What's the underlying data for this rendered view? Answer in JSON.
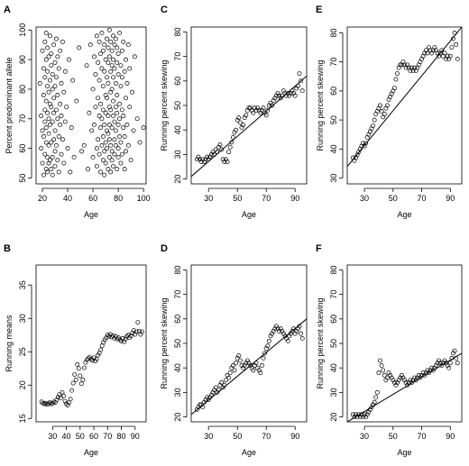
{
  "chart_data": [
    {
      "panel": "A",
      "type": "scatter",
      "xlabel": "Age",
      "ylabel": "Percent predominant allele",
      "xlim": [
        15,
        102
      ],
      "ylim": [
        48,
        101
      ],
      "xticks": [
        20,
        40,
        60,
        80,
        100
      ],
      "yticks": [
        50,
        60,
        70,
        80,
        90,
        100
      ],
      "fit_line": null,
      "x": [
        18,
        19,
        19,
        20,
        20,
        20,
        21,
        21,
        21,
        21,
        22,
        22,
        22,
        22,
        22,
        23,
        23,
        23,
        23,
        23,
        23,
        24,
        24,
        24,
        24,
        24,
        24,
        25,
        25,
        25,
        25,
        25,
        25,
        26,
        26,
        26,
        26,
        26,
        27,
        27,
        27,
        27,
        27,
        28,
        28,
        28,
        28,
        28,
        29,
        29,
        29,
        29,
        30,
        30,
        30,
        30,
        30,
        31,
        31,
        31,
        31,
        32,
        32,
        32,
        32,
        33,
        33,
        33,
        34,
        34,
        34,
        35,
        35,
        35,
        36,
        36,
        37,
        37,
        38,
        38,
        39,
        40,
        41,
        42,
        43,
        44,
        45,
        47,
        49,
        51,
        53,
        55,
        56,
        57,
        58,
        59,
        60,
        60,
        61,
        61,
        62,
        62,
        63,
        63,
        63,
        64,
        64,
        64,
        65,
        65,
        65,
        65,
        66,
        66,
        66,
        66,
        67,
        67,
        67,
        67,
        68,
        68,
        68,
        68,
        68,
        69,
        69,
        69,
        69,
        69,
        70,
        70,
        70,
        70,
        70,
        71,
        71,
        71,
        71,
        71,
        72,
        72,
        72,
        72,
        72,
        72,
        73,
        73,
        73,
        73,
        73,
        73,
        74,
        74,
        74,
        74,
        74,
        74,
        75,
        75,
        75,
        75,
        75,
        75,
        76,
        76,
        76,
        76,
        76,
        76,
        77,
        77,
        77,
        77,
        77,
        78,
        78,
        78,
        78,
        78,
        79,
        79,
        79,
        79,
        79,
        80,
        80,
        80,
        80,
        80,
        81,
        81,
        81,
        81,
        82,
        82,
        82,
        82,
        83,
        83,
        83,
        83,
        84,
        84,
        84,
        85,
        85,
        85,
        86,
        86,
        86,
        87,
        87,
        88,
        88,
        89,
        89,
        90,
        91,
        92,
        93,
        95,
        97,
        100
      ],
      "y": [
        82,
        60,
        71,
        55,
        93,
        66,
        78,
        51,
        87,
        64,
        73,
        58,
        96,
        69,
        84,
        53,
        76,
        90,
        62,
        99,
        67,
        81,
        57,
        72,
        94,
        52,
        86,
        65,
        79,
        55,
        91,
        70,
        61,
        75,
        98,
        56,
        83,
        68,
        88,
        53,
        74,
        62,
        92,
        80,
        57,
        69,
        85,
        51,
        77,
        95,
        63,
        72,
        59,
        89,
        66,
        81,
        54,
        73,
        97,
        61,
        84,
        70,
        56,
        91,
        78,
        64,
        87,
        52,
        75,
        93,
        68,
        58,
        82,
        71,
        96,
        63,
        79,
        55,
        86,
        69,
        74,
        60,
        90,
        52,
        67,
        83,
        57,
        76,
        94,
        59,
        61,
        88,
        53,
        72,
        95,
        66,
        80,
        57,
        91,
        68,
        74,
        85,
        60,
        98,
        54,
        77,
        89,
        63,
        71,
        96,
        58,
        83,
        67,
        52,
        92,
        75,
        61,
        87,
        70,
        99,
        56,
        81,
        64,
        93,
        73,
        59,
        86,
        68,
        51,
        95,
        78,
        62,
        90,
        72,
        55,
        84,
        66,
        97,
        60,
        77,
        89,
        53,
        71,
        94,
        65,
        82,
        57,
        100,
        74,
        63,
        91,
        68,
        86,
        52,
        79,
        96,
        61,
        73,
        88,
        56,
        93,
        67,
        80,
        59,
        98,
        71,
        84,
        54,
        76,
        90,
        63,
        95,
        69,
        58,
        87,
        74,
        82,
        61,
        97,
        66,
        53,
        89,
        72,
        78,
        94,
        60,
        85,
        68,
        57,
        92,
        75,
        64,
        99,
        70,
        81,
        55,
        88,
        62,
        93,
        73,
        58,
        84,
        67,
        96,
        71,
        53,
        86,
        64,
        90,
        77,
        59,
        82,
        68,
        95,
        61,
        74,
        87,
        56,
        79,
        66,
        91,
        70,
        62,
        67
      ]
    },
    {
      "panel": "B",
      "type": "scatter",
      "xlabel": "Age",
      "ylabel": "Running means",
      "xlim": [
        18,
        98
      ],
      "ylim": [
        14.5,
        38
      ],
      "xticks": [
        30,
        40,
        50,
        60,
        70,
        80,
        90
      ],
      "yticks": [
        15,
        20,
        25,
        30,
        35
      ],
      "fit_line": null,
      "x": [
        22,
        23,
        24,
        25,
        26,
        27,
        28,
        29,
        30,
        31,
        32,
        33,
        34,
        35,
        36,
        37,
        38,
        39,
        40,
        41,
        42,
        43,
        44,
        45,
        46,
        47,
        48,
        49,
        50,
        51,
        52,
        53,
        54,
        55,
        56,
        57,
        58,
        59,
        60,
        61,
        62,
        63,
        64,
        65,
        66,
        67,
        68,
        69,
        70,
        71,
        72,
        73,
        74,
        75,
        76,
        77,
        78,
        79,
        80,
        81,
        82,
        83,
        84,
        85,
        86,
        87,
        88,
        89,
        90,
        91,
        92,
        93,
        94,
        95
      ],
      "y": [
        17.5,
        17.3,
        17.2,
        17.3,
        17.1,
        17.2,
        17.4,
        17.2,
        17.3,
        17.5,
        17.4,
        17.8,
        18.2,
        18.6,
        18.1,
        18.9,
        18.4,
        17.6,
        17.2,
        17.0,
        17.4,
        17.9,
        19.2,
        20.3,
        21.6,
        20.8,
        23.1,
        22.5,
        21.4,
        20.2,
        20.8,
        22.6,
        23.4,
        23.8,
        24.0,
        24.2,
        23.9,
        23.7,
        24.1,
        23.6,
        23.9,
        24.5,
        24.8,
        25.3,
        25.9,
        26.4,
        26.8,
        27.1,
        27.5,
        27.3,
        27.6,
        27.2,
        27.4,
        27.0,
        27.3,
        26.9,
        27.1,
        26.8,
        26.6,
        27.0,
        26.5,
        26.9,
        27.3,
        27.5,
        27.1,
        27.4,
        27.8,
        28.2,
        27.6,
        28.0,
        29.4,
        28.1,
        27.6,
        28.0
      ]
    },
    {
      "panel": "C",
      "type": "scatter",
      "xlabel": "Age",
      "ylabel": "Running percent skewing",
      "xlim": [
        18,
        98
      ],
      "ylim": [
        18,
        82
      ],
      "xticks": [
        30,
        50,
        70,
        90
      ],
      "yticks": [
        20,
        30,
        40,
        50,
        60,
        70,
        80
      ],
      "fit_line": {
        "x": [
          18,
          98
        ],
        "y": [
          21,
          62
        ]
      },
      "x": [
        22,
        23,
        24,
        25,
        26,
        27,
        28,
        29,
        30,
        31,
        32,
        33,
        34,
        35,
        36,
        37,
        38,
        39,
        40,
        41,
        42,
        43,
        44,
        45,
        46,
        47,
        48,
        49,
        50,
        51,
        52,
        53,
        54,
        55,
        56,
        57,
        58,
        59,
        60,
        61,
        62,
        63,
        64,
        65,
        66,
        67,
        68,
        69,
        70,
        71,
        72,
        73,
        74,
        75,
        76,
        77,
        78,
        79,
        80,
        81,
        82,
        83,
        84,
        85,
        86,
        87,
        88,
        89,
        90,
        91,
        92,
        93,
        94,
        95
      ],
      "y": [
        28,
        29,
        28,
        27,
        28,
        27,
        28,
        29,
        28,
        29,
        30,
        31,
        30,
        32,
        31,
        33,
        34,
        32,
        28,
        27,
        28,
        27,
        31,
        33,
        35,
        37,
        39,
        40,
        44,
        45,
        43,
        41,
        42,
        45,
        46,
        48,
        49,
        49,
        48,
        47,
        49,
        48,
        49,
        48,
        47,
        48,
        49,
        47,
        46,
        48,
        50,
        51,
        50,
        52,
        53,
        54,
        55,
        54,
        53,
        54,
        56,
        55,
        54,
        55,
        54,
        55,
        56,
        55,
        54,
        57,
        58,
        63,
        60,
        56
      ]
    },
    {
      "panel": "D",
      "type": "scatter",
      "xlabel": "Age",
      "ylabel": "Running percent skewing",
      "xlim": [
        18,
        98
      ],
      "ylim": [
        18,
        82
      ],
      "xticks": [
        30,
        50,
        70,
        90
      ],
      "yticks": [
        20,
        30,
        40,
        50,
        60,
        70,
        80
      ],
      "fit_line": {
        "x": [
          18,
          98
        ],
        "y": [
          21,
          60
        ]
      },
      "x": [
        22,
        23,
        24,
        25,
        26,
        27,
        28,
        29,
        30,
        31,
        32,
        33,
        34,
        35,
        36,
        37,
        38,
        39,
        40,
        41,
        42,
        43,
        44,
        45,
        46,
        47,
        48,
        49,
        50,
        51,
        52,
        53,
        54,
        55,
        56,
        57,
        58,
        59,
        60,
        61,
        62,
        63,
        64,
        65,
        66,
        67,
        68,
        69,
        70,
        71,
        72,
        73,
        74,
        75,
        76,
        77,
        78,
        79,
        80,
        81,
        82,
        83,
        84,
        85,
        86,
        87,
        88,
        89,
        90,
        91,
        92,
        93,
        94,
        95
      ],
      "y": [
        23,
        24,
        25,
        25,
        24,
        26,
        27,
        28,
        27,
        28,
        29,
        30,
        31,
        32,
        30,
        31,
        33,
        34,
        32,
        33,
        35,
        37,
        36,
        38,
        40,
        41,
        39,
        42,
        44,
        45,
        43,
        41,
        40,
        41,
        42,
        43,
        42,
        41,
        40,
        39,
        41,
        42,
        40,
        39,
        38,
        41,
        44,
        46,
        48,
        49,
        51,
        53,
        54,
        55,
        56,
        57,
        56,
        55,
        56,
        55,
        54,
        53,
        52,
        51,
        53,
        54,
        55,
        56,
        54,
        55,
        56,
        57,
        54,
        52
      ]
    },
    {
      "panel": "E",
      "type": "scatter",
      "xlabel": "Age",
      "ylabel": "Running percent skewing",
      "xlim": [
        18,
        98
      ],
      "ylim": [
        28,
        82
      ],
      "xticks": [
        30,
        50,
        70,
        90
      ],
      "yticks": [
        30,
        40,
        50,
        60,
        70,
        80
      ],
      "fit_line": {
        "x": [
          18,
          98
        ],
        "y": [
          34,
          82
        ]
      },
      "x": [
        22,
        23,
        24,
        25,
        26,
        27,
        28,
        29,
        30,
        31,
        32,
        33,
        34,
        35,
        36,
        37,
        38,
        39,
        40,
        41,
        42,
        43,
        44,
        45,
        46,
        47,
        48,
        49,
        50,
        51,
        52,
        53,
        54,
        55,
        56,
        57,
        58,
        59,
        60,
        61,
        62,
        63,
        64,
        65,
        66,
        67,
        68,
        69,
        70,
        71,
        72,
        73,
        74,
        75,
        76,
        77,
        78,
        79,
        80,
        81,
        82,
        83,
        84,
        85,
        86,
        87,
        88,
        89,
        90,
        91,
        92,
        93,
        94,
        95
      ],
      "y": [
        37,
        36,
        37,
        38,
        39,
        40,
        41,
        42,
        41,
        42,
        44,
        45,
        46,
        47,
        48,
        50,
        52,
        53,
        54,
        55,
        53,
        51,
        52,
        54,
        55,
        57,
        58,
        59,
        60,
        61,
        64,
        66,
        68,
        69,
        69,
        70,
        69,
        68,
        69,
        68,
        67,
        68,
        67,
        68,
        67,
        68,
        69,
        70,
        71,
        72,
        73,
        74,
        73,
        75,
        74,
        73,
        74,
        75,
        74,
        73,
        72,
        73,
        74,
        72,
        73,
        71,
        72,
        71,
        72,
        75,
        78,
        80,
        76,
        71
      ]
    },
    {
      "panel": "F",
      "type": "scatter",
      "xlabel": "Age",
      "ylabel": "Running percent skewing",
      "xlim": [
        18,
        98
      ],
      "ylim": [
        18,
        82
      ],
      "xticks": [
        30,
        50,
        70,
        90
      ],
      "yticks": [
        20,
        30,
        40,
        50,
        60,
        70,
        80
      ],
      "fit_line": {
        "x": [
          18,
          98
        ],
        "y": [
          18,
          46
        ]
      },
      "x": [
        22,
        23,
        24,
        25,
        26,
        27,
        28,
        29,
        30,
        31,
        32,
        33,
        34,
        35,
        36,
        37,
        38,
        39,
        40,
        41,
        42,
        43,
        44,
        45,
        46,
        47,
        48,
        49,
        50,
        51,
        52,
        53,
        54,
        55,
        56,
        57,
        58,
        59,
        60,
        61,
        62,
        63,
        64,
        65,
        66,
        67,
        68,
        69,
        70,
        71,
        72,
        73,
        74,
        75,
        76,
        77,
        78,
        79,
        80,
        81,
        82,
        83,
        84,
        85,
        86,
        87,
        88,
        89,
        90,
        91,
        92,
        93,
        94,
        95
      ],
      "y": [
        21,
        20,
        21,
        20,
        21,
        20,
        21,
        20,
        21,
        20,
        21,
        22,
        23,
        24,
        25,
        26,
        28,
        30,
        38,
        43,
        41,
        39,
        37,
        35,
        36,
        38,
        37,
        36,
        35,
        34,
        33,
        34,
        35,
        36,
        37,
        36,
        35,
        34,
        33,
        34,
        35,
        34,
        35,
        36,
        35,
        36,
        37,
        36,
        37,
        38,
        37,
        38,
        39,
        38,
        39,
        40,
        39,
        40,
        41,
        42,
        43,
        42,
        41,
        42,
        43,
        42,
        41,
        40,
        42,
        44,
        46,
        47,
        44,
        42
      ]
    }
  ]
}
